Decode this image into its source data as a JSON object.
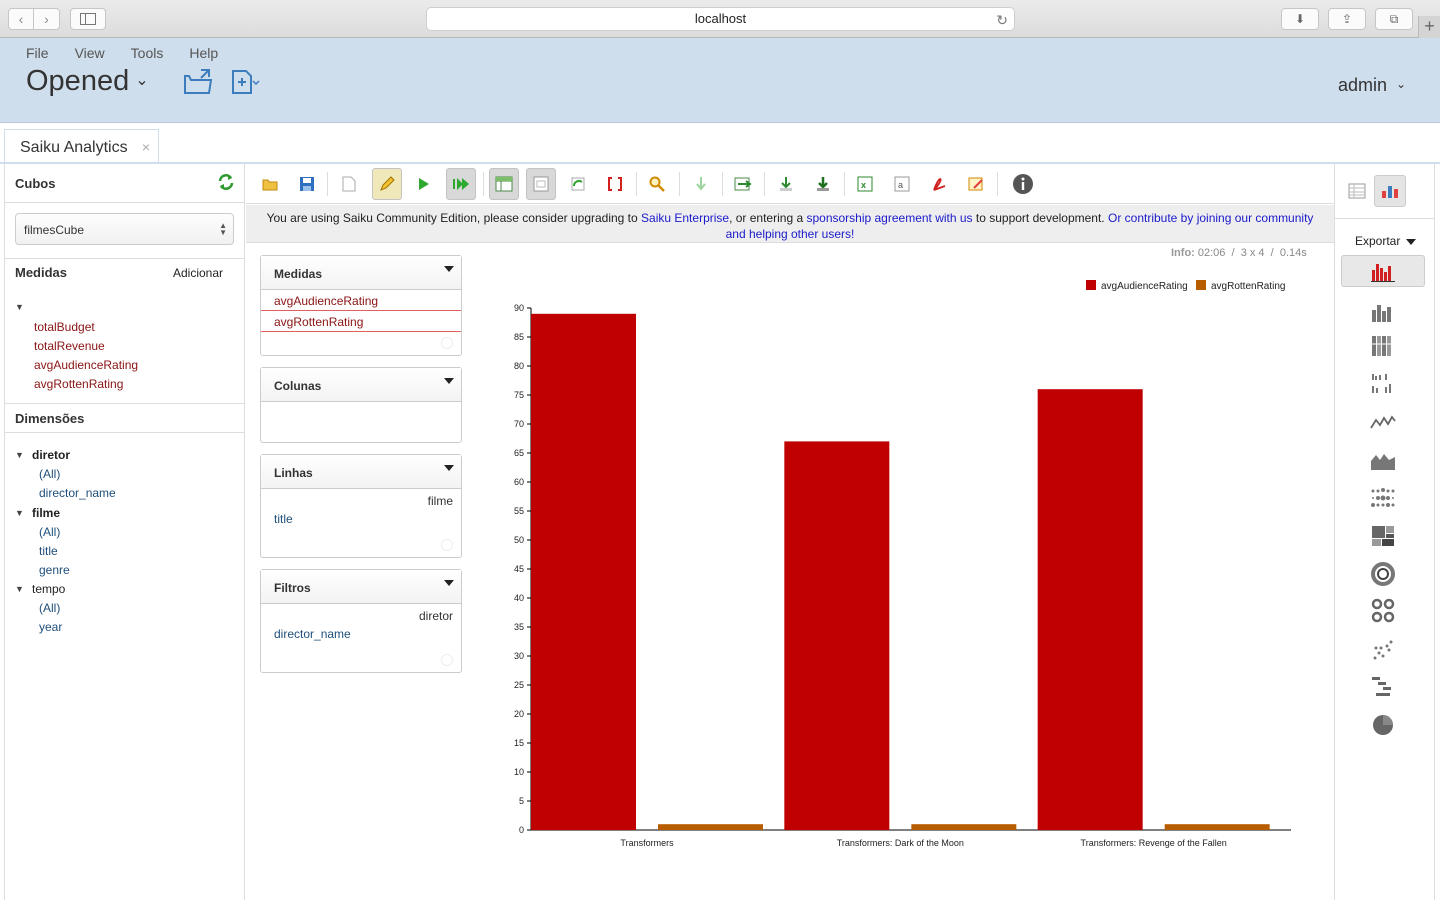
{
  "browser": {
    "url": "localhost"
  },
  "app": {
    "menu": [
      "File",
      "View",
      "Tools",
      "Help"
    ],
    "title": "Opened",
    "user": "admin"
  },
  "tabs": [
    {
      "label": "Saiku Analytics"
    }
  ],
  "sidebar": {
    "cubes_title": "Cubos",
    "cube_selected": "filmesCube",
    "measures_title": "Medidas",
    "add_label": "Adicionar",
    "measures": [
      "totalBudget",
      "totalRevenue",
      "avgAudienceRating",
      "avgRottenRating"
    ],
    "dimensions_title": "Dimensões",
    "dimensions": [
      {
        "name": "diretor",
        "levels": [
          "(All)",
          "director_name"
        ]
      },
      {
        "name": "filme",
        "levels": [
          "(All)",
          "title",
          "genre"
        ]
      },
      {
        "name": "tempo",
        "levels": [
          "(All)",
          "year"
        ]
      }
    ]
  },
  "notice": {
    "part1": "You are using Saiku Community Edition, please consider upgrading to ",
    "link1": "Saiku Enterprise",
    "part2": ", or entering a ",
    "link2": "sponsorship agreement with us",
    "part3": " to support development. ",
    "link3": "Or contribute by joining our community and helping other users!"
  },
  "query": {
    "measures": {
      "title": "Medidas",
      "items": [
        "avgAudienceRating",
        "avgRottenRating"
      ]
    },
    "columns": {
      "title": "Colunas"
    },
    "rows": {
      "title": "Linhas",
      "dimension": "filme",
      "level": "title"
    },
    "filters": {
      "title": "Filtros",
      "dimension": "diretor",
      "level": "director_name"
    }
  },
  "info": {
    "label": "Info:",
    "time": "02:06",
    "size": "3 x 4",
    "duration": "0.14s"
  },
  "right_panel": {
    "export_label": "Exportar"
  },
  "colors": {
    "series1": "#c00000",
    "series2": "#b85c00"
  },
  "chart_data": {
    "type": "bar",
    "categories": [
      "Transformers",
      "Transformers: Dark of the Moon",
      "Transformers: Revenge of the Fallen"
    ],
    "series": [
      {
        "name": "avgAudienceRating",
        "values": [
          89,
          67,
          76
        ]
      },
      {
        "name": "avgRottenRating",
        "values": [
          1,
          1,
          1
        ]
      }
    ],
    "ylim": [
      0,
      90
    ],
    "yticks": [
      0,
      5,
      10,
      15,
      20,
      25,
      30,
      35,
      40,
      45,
      50,
      55,
      60,
      65,
      70,
      75,
      80,
      85,
      90
    ],
    "legend": "top-right",
    "title": "",
    "xlabel": "",
    "ylabel": ""
  }
}
